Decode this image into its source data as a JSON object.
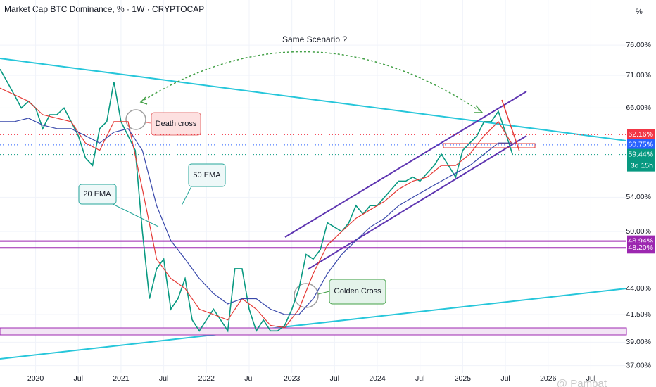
{
  "chart_data": {
    "type": "line",
    "title": "Market Cap BTC Dominance, % · 1W · CRYPTOCAP",
    "y_unit": "%",
    "log_scale": true,
    "xlim": [
      "2019-08",
      "2026-12"
    ],
    "ylim": [
      36.4,
      84.1
    ],
    "xticks": [
      {
        "value": "2020-01",
        "label": "2020"
      },
      {
        "value": "2020-07",
        "label": "Jul"
      },
      {
        "value": "2021-01",
        "label": "2021"
      },
      {
        "value": "2021-07",
        "label": "Jul"
      },
      {
        "value": "2022-01",
        "label": "2022"
      },
      {
        "value": "2022-07",
        "label": "Jul"
      },
      {
        "value": "2023-01",
        "label": "2023"
      },
      {
        "value": "2023-07",
        "label": "Jul"
      },
      {
        "value": "2024-01",
        "label": "2024"
      },
      {
        "value": "2024-07",
        "label": "Jul"
      },
      {
        "value": "2025-01",
        "label": "2025"
      },
      {
        "value": "2025-07",
        "label": "Jul"
      },
      {
        "value": "2026-01",
        "label": "2026"
      },
      {
        "value": "2026-07",
        "label": "Jul"
      }
    ],
    "yticks": [
      {
        "value": 76,
        "label": "76.00%"
      },
      {
        "value": 71,
        "label": "71.00%"
      },
      {
        "value": 66,
        "label": "66.00%"
      },
      {
        "value": 54,
        "label": "54.00%"
      },
      {
        "value": 50,
        "label": "50.00%"
      },
      {
        "value": 44,
        "label": "44.00%"
      },
      {
        "value": 41.5,
        "label": "41.50%"
      },
      {
        "value": 39,
        "label": "39.00%"
      },
      {
        "value": 37,
        "label": "37.00%"
      }
    ],
    "series": [
      {
        "color": "#089981",
        "x": [
          "2019-08",
          "2019-09",
          "2019-10",
          "2019-11",
          "2019-12",
          "2020-01",
          "2020-02",
          "2020-03",
          "2020-04",
          "2020-05",
          "2020-06",
          "2020-07",
          "2020-08",
          "2020-09",
          "2020-10",
          "2020-11",
          "2020-12",
          "2021-01",
          "2021-02",
          "2021-03",
          "2021-04",
          "2021-05",
          "2021-06",
          "2021-07",
          "2021-08",
          "2021-09",
          "2021-10",
          "2021-11",
          "2021-12",
          "2022-01",
          "2022-02",
          "2022-03",
          "2022-04",
          "2022-05",
          "2022-06",
          "2022-07",
          "2022-08",
          "2022-09",
          "2022-10",
          "2022-11",
          "2022-12",
          "2023-01",
          "2023-02",
          "2023-03",
          "2023-04",
          "2023-05",
          "2023-06",
          "2023-07",
          "2023-08",
          "2023-09",
          "2023-10",
          "2023-11",
          "2023-12",
          "2024-01",
          "2024-02",
          "2024-03",
          "2024-04",
          "2024-05",
          "2024-06",
          "2024-07",
          "2024-08",
          "2024-09",
          "2024-10",
          "2024-11",
          "2024-12",
          "2025-01",
          "2025-02",
          "2025-03",
          "2025-04",
          "2025-05",
          "2025-06",
          "2025-07",
          "2025-08"
        ],
        "values": [
          72,
          70,
          68,
          66,
          67,
          66,
          63,
          65,
          65,
          66,
          64,
          62,
          59,
          58,
          63,
          64,
          70,
          64,
          62,
          60,
          50,
          43,
          46,
          47,
          42,
          43,
          45,
          41,
          40,
          41,
          42,
          41,
          40,
          46,
          46,
          42,
          40,
          41,
          40,
          40,
          40.5,
          42,
          44,
          47.5,
          47,
          48,
          51,
          50.5,
          50,
          51,
          53,
          52,
          53,
          53,
          54,
          55,
          56,
          56,
          56.5,
          56,
          57,
          58,
          59.5,
          58,
          56.5,
          60,
          61,
          62,
          64,
          64,
          65.5,
          62.5,
          59.44
        ]
      },
      {
        "name": "20 EMA",
        "color": "#e53935",
        "x": [
          "2019-08",
          "2019-10",
          "2019-12",
          "2020-02",
          "2020-04",
          "2020-06",
          "2020-08",
          "2020-10",
          "2020-12",
          "2021-02",
          "2021-04",
          "2021-06",
          "2021-08",
          "2021-10",
          "2021-12",
          "2022-02",
          "2022-04",
          "2022-06",
          "2022-08",
          "2022-10",
          "2022-12",
          "2023-02",
          "2023-04",
          "2023-06",
          "2023-08",
          "2023-10",
          "2023-12",
          "2024-02",
          "2024-04",
          "2024-06",
          "2024-08",
          "2024-10",
          "2024-12",
          "2025-02",
          "2025-04",
          "2025-06",
          "2025-08"
        ],
        "values": [
          69,
          68,
          67,
          65,
          64.5,
          64,
          61,
          60,
          64,
          64,
          55,
          47,
          45,
          44,
          42,
          41.5,
          41,
          43,
          42,
          40.5,
          40.3,
          42,
          45.5,
          48.5,
          50,
          51.5,
          52.5,
          53.5,
          55,
          56,
          56.5,
          58,
          58,
          59.5,
          62,
          64,
          60.75
        ]
      },
      {
        "name": "50 EMA",
        "color": "#3949ab",
        "x": [
          "2019-08",
          "2019-10",
          "2019-12",
          "2020-02",
          "2020-04",
          "2020-06",
          "2020-08",
          "2020-10",
          "2020-12",
          "2021-02",
          "2021-04",
          "2021-06",
          "2021-08",
          "2021-10",
          "2021-12",
          "2022-02",
          "2022-04",
          "2022-06",
          "2022-08",
          "2022-10",
          "2022-12",
          "2023-02",
          "2023-04",
          "2023-06",
          "2023-08",
          "2023-10",
          "2023-12",
          "2024-02",
          "2024-04",
          "2024-06",
          "2024-08",
          "2024-10",
          "2024-12",
          "2025-02",
          "2025-04",
          "2025-06",
          "2025-08"
        ],
        "values": [
          64,
          64,
          64.5,
          63.5,
          63,
          63,
          62,
          61,
          62.5,
          63,
          60,
          53,
          49,
          47,
          45,
          43.5,
          42.5,
          43,
          43,
          42,
          41.5,
          41.5,
          43,
          45.5,
          47.5,
          49,
          50.5,
          51.5,
          53,
          54,
          55,
          56,
          57,
          58,
          59.5,
          61,
          61
        ]
      }
    ],
    "levels": [
      {
        "value": 48.94,
        "label": "48.94%",
        "color": "#9c27b0"
      },
      {
        "value": 48.2,
        "label": "48.20%",
        "color": "#9c27b0"
      }
    ],
    "price_badges": [
      {
        "value": 62.16,
        "label": "62.16%",
        "color": "#f23645"
      },
      {
        "value": 60.75,
        "label": "60.75%",
        "color": "#2962ff"
      },
      {
        "value": 59.44,
        "label": "59.44%",
        "color": "#089981"
      }
    ],
    "countdown": "3d 15h",
    "annotations": {
      "same_scenario": "Same Scenario ?",
      "death_cross": "Death cross",
      "golden_cross": "Golden Cross"
    },
    "watermark": "@ Pampat"
  }
}
